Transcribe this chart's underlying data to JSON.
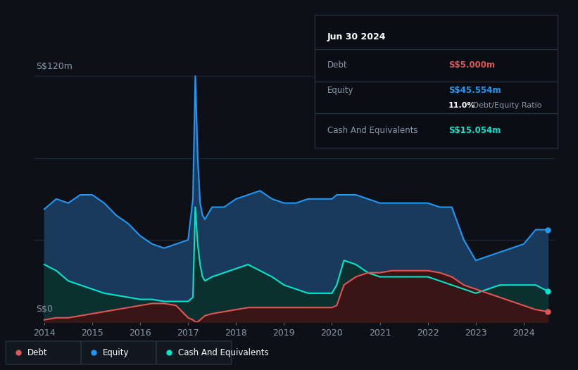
{
  "bg_color": "#0d1117",
  "plot_bg_color": "#0d1117",
  "grid_color": "#1e2a38",
  "ylabel": "S$120m",
  "y0_label": "S$0",
  "ylim": [
    0,
    130
  ],
  "yticks": [
    0,
    40,
    80,
    120
  ],
  "equity_color": "#2196f3",
  "equity_fill": "#1a3a5c",
  "cash_color": "#00e5cc",
  "cash_fill": "#0a3030",
  "debt_color": "#e05555",
  "debt_fill": "#3a1515",
  "legend_bg": "#111820",
  "legend_border": "#2a3848",
  "info_box_bg": "#0a0e14",
  "info_box_border": "#2a3848",
  "x_years": [
    2014.0,
    2014.25,
    2014.5,
    2014.75,
    2015.0,
    2015.25,
    2015.5,
    2015.75,
    2016.0,
    2016.25,
    2016.5,
    2016.75,
    2017.0,
    2017.1,
    2017.15,
    2017.2,
    2017.25,
    2017.3,
    2017.35,
    2017.5,
    2017.75,
    2018.0,
    2018.25,
    2018.5,
    2018.75,
    2019.0,
    2019.25,
    2019.5,
    2019.75,
    2020.0,
    2020.1,
    2020.25,
    2020.5,
    2020.75,
    2021.0,
    2021.25,
    2021.5,
    2021.75,
    2022.0,
    2022.25,
    2022.5,
    2022.75,
    2023.0,
    2023.25,
    2023.5,
    2023.75,
    2024.0,
    2024.25,
    2024.5
  ],
  "equity": [
    55,
    60,
    58,
    62,
    62,
    58,
    52,
    48,
    42,
    38,
    36,
    38,
    40,
    60,
    120,
    80,
    58,
    52,
    50,
    56,
    56,
    60,
    62,
    64,
    60,
    58,
    58,
    60,
    60,
    60,
    62,
    62,
    62,
    60,
    58,
    58,
    58,
    58,
    58,
    56,
    56,
    40,
    30,
    32,
    34,
    36,
    38,
    45,
    45
  ],
  "cash": [
    28,
    25,
    20,
    18,
    16,
    14,
    13,
    12,
    11,
    11,
    10,
    10,
    10,
    12,
    56,
    38,
    28,
    22,
    20,
    22,
    24,
    26,
    28,
    25,
    22,
    18,
    16,
    14,
    14,
    14,
    18,
    30,
    28,
    24,
    22,
    22,
    22,
    22,
    22,
    20,
    18,
    16,
    14,
    16,
    18,
    18,
    18,
    18,
    15
  ],
  "debt": [
    1,
    2,
    2,
    3,
    4,
    5,
    6,
    7,
    8,
    9,
    9,
    8,
    2,
    1,
    0,
    0,
    1,
    2,
    3,
    4,
    5,
    6,
    7,
    7,
    7,
    7,
    7,
    7,
    7,
    7,
    8,
    18,
    22,
    24,
    24,
    25,
    25,
    25,
    25,
    24,
    22,
    18,
    16,
    14,
    12,
    10,
    8,
    6,
    5
  ],
  "xtick_years": [
    2014,
    2015,
    2016,
    2017,
    2018,
    2019,
    2020,
    2021,
    2022,
    2023,
    2024
  ],
  "info_date": "Jun 30 2024",
  "info_debt_label": "Debt",
  "info_debt_value": "S$5.000m",
  "info_equity_label": "Equity",
  "info_equity_value": "S$45.554m",
  "info_ratio": "11.0%",
  "info_ratio_label": " Debt/Equity Ratio",
  "info_cash_label": "Cash And Equivalents",
  "info_cash_value": "S$15.054m",
  "legend_items": [
    "Debt",
    "Equity",
    "Cash And Equivalents"
  ]
}
